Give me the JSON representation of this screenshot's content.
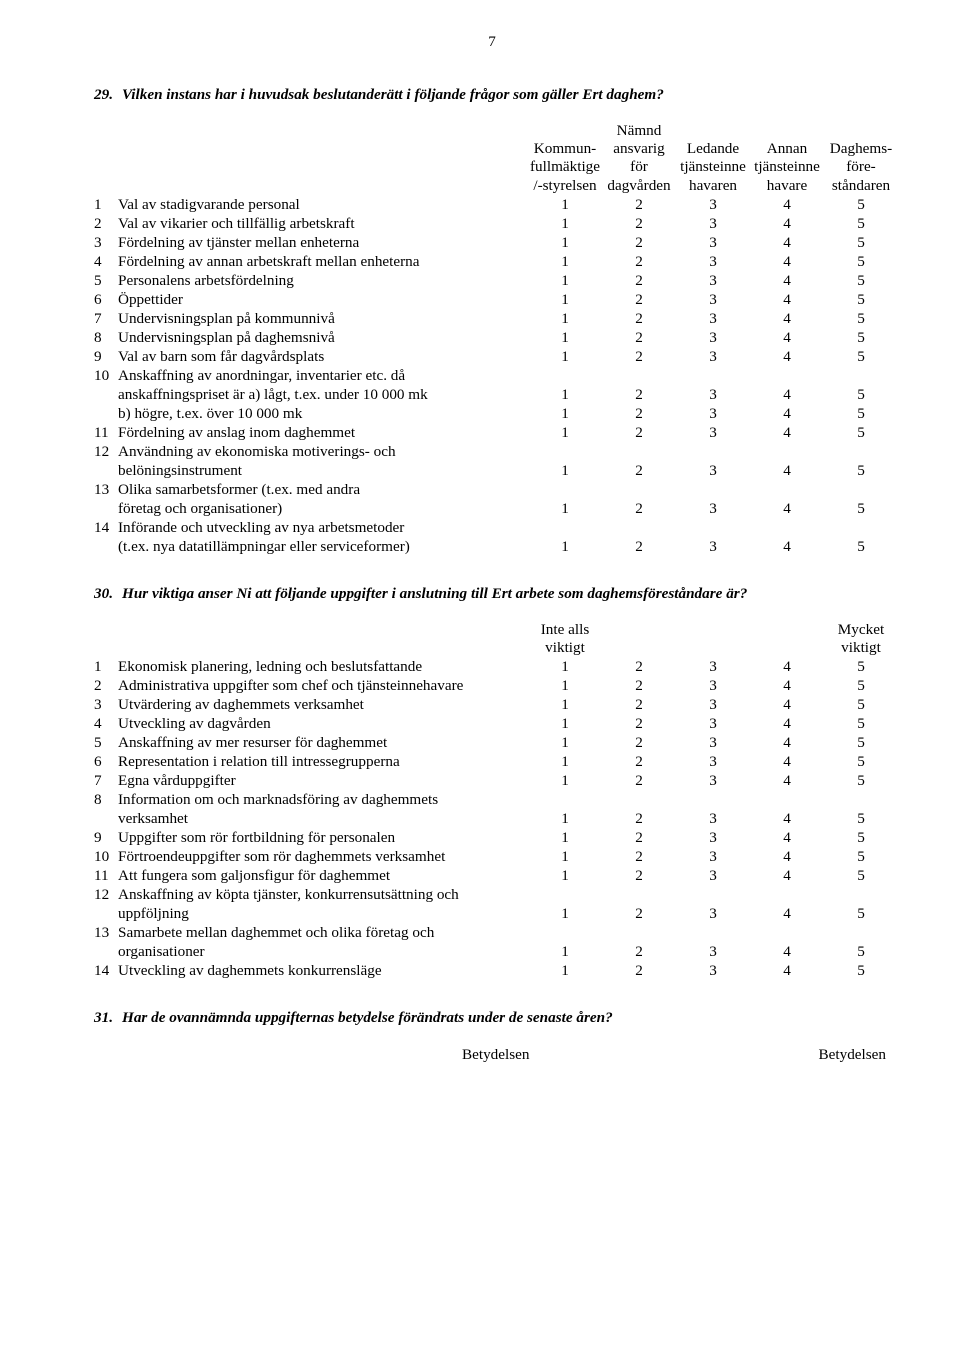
{
  "page_number": "7",
  "q29": {
    "number": "29.",
    "text": "Vilken instans har i huvudsak beslutanderätt i följande frågor som gäller Ert daghem?",
    "header_lines": [
      [
        "",
        "Nämnd",
        "",
        "",
        ""
      ],
      [
        "Kommun-",
        "ansvarig",
        "Ledande",
        "Annan",
        "Daghems-"
      ],
      [
        "fullmäktige",
        "för",
        "tjänsteinne",
        "tjänsteinne",
        "före-"
      ],
      [
        "/-styrelsen",
        "dagvården",
        "havaren",
        "havare",
        "ståndaren"
      ]
    ],
    "rows": [
      {
        "n": "1",
        "label": "Val av stadigvarande personal",
        "v": [
          "1",
          "2",
          "3",
          "4",
          "5"
        ]
      },
      {
        "n": "2",
        "label": "Val av vikarier och tillfällig arbetskraft",
        "v": [
          "1",
          "2",
          "3",
          "4",
          "5"
        ]
      },
      {
        "n": "3",
        "label": "Fördelning av tjänster mellan enheterna",
        "v": [
          "1",
          "2",
          "3",
          "4",
          "5"
        ]
      },
      {
        "n": "4",
        "label": "Fördelning av annan arbetskraft mellan enheterna",
        "v": [
          "1",
          "2",
          "3",
          "4",
          "5"
        ]
      },
      {
        "n": "5",
        "label": "Personalens arbetsfördelning",
        "v": [
          "1",
          "2",
          "3",
          "4",
          "5"
        ]
      },
      {
        "n": "6",
        "label": "Öppettider",
        "v": [
          "1",
          "2",
          "3",
          "4",
          "5"
        ]
      },
      {
        "n": "7",
        "label": "Undervisningsplan på kommunnivå",
        "v": [
          "1",
          "2",
          "3",
          "4",
          "5"
        ]
      },
      {
        "n": "8",
        "label": "Undervisningsplan på daghemsnivå",
        "v": [
          "1",
          "2",
          "3",
          "4",
          "5"
        ]
      },
      {
        "n": "9",
        "label": "Val av barn som får dagvårdsplats",
        "v": [
          "1",
          "2",
          "3",
          "4",
          "5"
        ]
      },
      {
        "n": "10",
        "label": "Anskaffning av anordningar, inventarier etc. då",
        "v": [
          "",
          "",
          "",
          "",
          ""
        ]
      },
      {
        "n": "",
        "label": "anskaffningspriset är  a) lågt, t.ex. under 10 000 mk",
        "v": [
          "1",
          "2",
          "3",
          "4",
          "5"
        ]
      },
      {
        "n": "",
        "label": "b) högre, t.ex. över 10 000 mk",
        "v": [
          "1",
          "2",
          "3",
          "4",
          "5"
        ]
      },
      {
        "n": "11",
        "label": "Fördelning av anslag inom daghemmet",
        "v": [
          "1",
          "2",
          "3",
          "4",
          "5"
        ]
      },
      {
        "n": "12",
        "label": "Användning av ekonomiska motiverings- och",
        "v": [
          "",
          "",
          "",
          "",
          ""
        ]
      },
      {
        "n": "",
        "label": "belöningsinstrument",
        "v": [
          "1",
          "2",
          "3",
          "4",
          "5"
        ]
      },
      {
        "n": "13",
        "label": "Olika samarbetsformer (t.ex. med andra",
        "v": [
          "",
          "",
          "",
          "",
          ""
        ]
      },
      {
        "n": "",
        "label": "företag och organisationer)",
        "v": [
          "1",
          "2",
          "3",
          "4",
          "5"
        ]
      },
      {
        "n": "14",
        "label": "Införande och utveckling av  nya arbetsmetoder",
        "v": [
          "",
          "",
          "",
          "",
          ""
        ]
      },
      {
        "n": "",
        "label": "(t.ex. nya datatillämpningar eller serviceformer)",
        "v": [
          "1",
          "2",
          "3",
          "4",
          "5"
        ]
      }
    ]
  },
  "q30": {
    "number": "30.",
    "text": "Hur viktiga anser Ni att följande uppgifter i anslutning till Ert arbete som daghemsföreståndare är?",
    "header_lines": [
      [
        "Inte alls",
        "",
        "",
        "",
        "Mycket"
      ],
      [
        "viktigt",
        "",
        "",
        "",
        "viktigt"
      ]
    ],
    "rows": [
      {
        "n": "1",
        "label": "Ekonomisk planering, ledning och beslutsfattande",
        "v": [
          "1",
          "2",
          "3",
          "4",
          "5"
        ]
      },
      {
        "n": "2",
        "label": "Administrativa uppgifter som chef och tjänsteinnehavare",
        "v": [
          "1",
          "2",
          "3",
          "4",
          "5"
        ]
      },
      {
        "n": "3",
        "label": "Utvärdering av daghemmets verksamhet",
        "v": [
          "1",
          "2",
          "3",
          "4",
          "5"
        ]
      },
      {
        "n": "4",
        "label": "Utveckling av dagvården",
        "v": [
          "1",
          "2",
          "3",
          "4",
          "5"
        ]
      },
      {
        "n": "5",
        "label": "Anskaffning av mer resurser för daghemmet",
        "v": [
          "1",
          "2",
          "3",
          "4",
          "5"
        ]
      },
      {
        "n": "6",
        "label": "Representation i relation till intressegrupperna",
        "v": [
          "1",
          "2",
          "3",
          "4",
          "5"
        ]
      },
      {
        "n": "7",
        "label": "Egna vårduppgifter",
        "v": [
          "1",
          "2",
          "3",
          "4",
          "5"
        ]
      },
      {
        "n": "8",
        "label": "Information om och marknadsföring av daghemmets",
        "v": [
          "",
          "",
          "",
          "",
          ""
        ]
      },
      {
        "n": "",
        "label": "verksamhet",
        "v": [
          "1",
          "2",
          "3",
          "4",
          "5"
        ]
      },
      {
        "n": "9",
        "label": "Uppgifter som rör fortbildning för personalen",
        "v": [
          "1",
          "2",
          "3",
          "4",
          "5"
        ]
      },
      {
        "n": "10",
        "label": "Förtroendeuppgifter som rör daghemmets verksamhet",
        "v": [
          "1",
          "2",
          "3",
          "4",
          "5"
        ]
      },
      {
        "n": "11",
        "label": "Att fungera som galjonsfigur för daghemmet",
        "v": [
          "1",
          "2",
          "3",
          "4",
          "5"
        ]
      },
      {
        "n": "12",
        "label": "Anskaffning av köpta tjänster, konkurrensutsättning och",
        "v": [
          "",
          "",
          "",
          "",
          ""
        ]
      },
      {
        "n": "",
        "label": "uppföljning",
        "v": [
          "1",
          "2",
          "3",
          "4",
          "5"
        ]
      },
      {
        "n": "13",
        "label": "Samarbete mellan daghemmet och olika företag och",
        "v": [
          "",
          "",
          "",
          "",
          ""
        ]
      },
      {
        "n": "",
        "label": "organisationer",
        "v": [
          "1",
          "2",
          "3",
          "4",
          "5"
        ]
      },
      {
        "n": "14",
        "label": "Utveckling av daghemmets konkurrensläge",
        "v": [
          "1",
          "2",
          "3",
          "4",
          "5"
        ]
      }
    ]
  },
  "q31": {
    "number": "31.",
    "text": "Har de ovannämnda uppgifternas betydelse förändrats under de senaste åren?",
    "footer_left": "Betydelsen",
    "footer_right": "Betydelsen"
  }
}
